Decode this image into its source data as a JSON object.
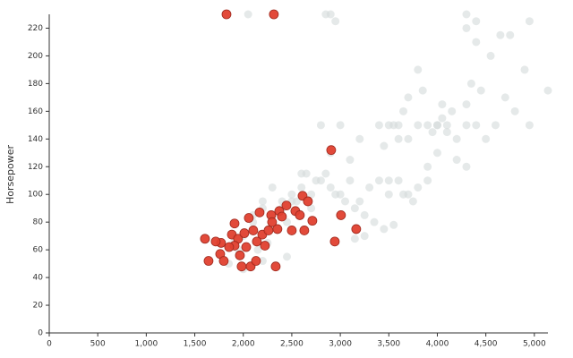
{
  "chart_data": {
    "type": "scatter",
    "y_label": "Horsepower",
    "xlim": [
      0,
      5140
    ],
    "ylim": [
      0,
      230
    ],
    "xticks": [
      0,
      500,
      {
        "value": 1000,
        "label": "1,000"
      },
      {
        "value": 1500,
        "label": "1,500"
      },
      {
        "value": 2000,
        "label": "2,000"
      },
      {
        "value": 2500,
        "label": "2,500"
      },
      {
        "value": 3000,
        "label": "3,000"
      },
      {
        "value": 3500,
        "label": "3,500"
      },
      {
        "value": 4000,
        "label": "4,000"
      },
      {
        "value": 4500,
        "label": "4,500"
      },
      {
        "value": 5000,
        "label": "5,000"
      }
    ],
    "yticks": [
      0,
      20,
      40,
      60,
      80,
      100,
      120,
      140,
      160,
      180,
      200,
      220
    ],
    "series": [
      {
        "color": "#d3dbdb",
        "x": [
          3400,
          3500,
          3600,
          3700,
          3800,
          3900,
          4000,
          4100,
          4200,
          4300,
          4400,
          4500,
          4600,
          4700,
          4800,
          4950,
          5140,
          4900,
          4950,
          4750,
          4650,
          4550,
          4400,
          4300,
          4350,
          4450,
          4300,
          4150,
          4050,
          3950,
          3850,
          3800,
          3700,
          3650,
          3550,
          3450,
          3400,
          3500,
          3600,
          3700,
          3800,
          3900,
          4000,
          4100,
          4200,
          4300,
          4050,
          3300,
          3200,
          3100,
          3000,
          2900,
          2800,
          2700,
          2600,
          2500,
          2400,
          2300,
          2200,
          2100,
          2000,
          1900,
          1850,
          2000,
          2150,
          2250,
          2350,
          2450,
          2550,
          2650,
          2750,
          2850,
          2950,
          3050,
          3150,
          3250,
          3350,
          3450,
          3550,
          3650,
          3150,
          3250,
          3100,
          3200,
          2900,
          2800,
          3000,
          2850,
          2900,
          2950,
          2050,
          4300,
          4400,
          4000,
          3600,
          3900,
          3750,
          3500,
          2700,
          2600,
          2500,
          2400,
          2300,
          2200,
          2100,
          2450,
          2200,
          1950
        ],
        "values": [
          150,
          150,
          150,
          140,
          150,
          150,
          150,
          150,
          140,
          150,
          150,
          140,
          150,
          170,
          160,
          150,
          175,
          190,
          225,
          215,
          215,
          200,
          210,
          220,
          180,
          175,
          165,
          160,
          155,
          145,
          175,
          190,
          170,
          160,
          150,
          135,
          110,
          100,
          110,
          100,
          105,
          110,
          130,
          145,
          125,
          120,
          165,
          105,
          95,
          110,
          100,
          105,
          110,
          100,
          105,
          95,
          90,
          85,
          90,
          80,
          70,
          65,
          50,
          46,
          60,
          65,
          75,
          80,
          95,
          115,
          110,
          115,
          100,
          95,
          90,
          85,
          80,
          75,
          78,
          100,
          68,
          70,
          125,
          140,
          130,
          150,
          150,
          230,
          230,
          225,
          230,
          230,
          225,
          150,
          140,
          120,
          95,
          110,
          90,
          115,
          100,
          95,
          105,
          95,
          85,
          55,
          52,
          60
        ]
      },
      {
        "color": "#e0402f",
        "x": [
          1827,
          2315,
          2906,
          1605,
          1642,
          1910,
          1771,
          1762,
          1799,
          1983,
          2076,
          2131,
          2334,
          2057,
          2168,
          2288,
          2371,
          2445,
          2537,
          2611,
          2666,
          2583,
          2712,
          2500,
          2629,
          3007,
          2943,
          3164,
          1882,
          1946,
          2011,
          2103,
          2196,
          2260,
          2352,
          1910,
          2030,
          2140,
          2223,
          1965,
          1854,
          1716,
          2297,
          2398
        ],
        "values": [
          230,
          230,
          132,
          68,
          52,
          79,
          65,
          57,
          52,
          48,
          48,
          52,
          48,
          83,
          87,
          85,
          88,
          92,
          88,
          99,
          95,
          85,
          81,
          74,
          74,
          85,
          66,
          75,
          71,
          68,
          72,
          74,
          71,
          74,
          75,
          63,
          62,
          66,
          63,
          56,
          62,
          66,
          80,
          84
        ]
      }
    ]
  }
}
